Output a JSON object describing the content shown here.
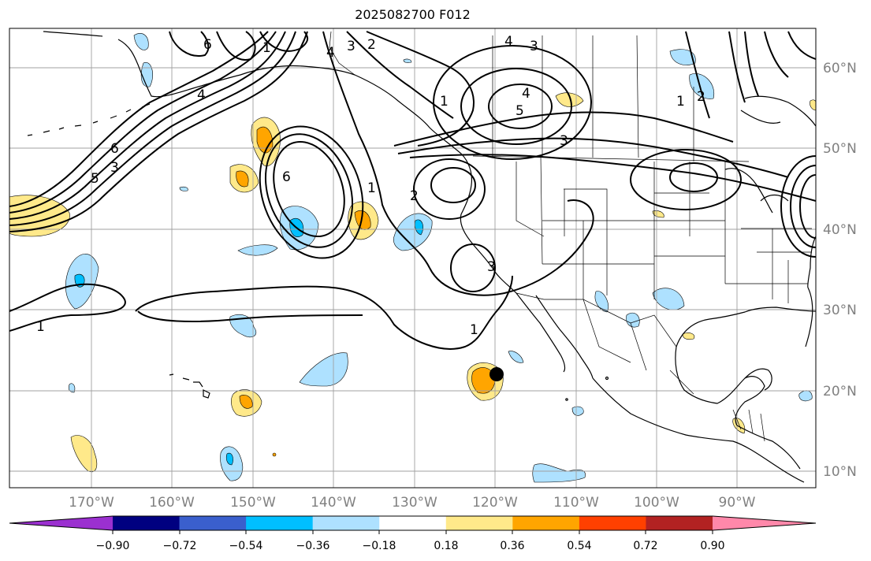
{
  "title": "2025082700 F012",
  "map": {
    "lon_labels": [
      "170°W",
      "160°W",
      "150°W",
      "140°W",
      "130°W",
      "120°W",
      "110°W",
      "100°W",
      "90°W"
    ],
    "lat_labels": [
      "60°N",
      "50°N",
      "40°N",
      "30°N",
      "20°N",
      "10°N"
    ],
    "marker": {
      "label": "",
      "lon": -119.3,
      "lat": 22.0
    },
    "contour_labels": [
      "1",
      "1",
      "1",
      "1",
      "1",
      "1",
      "2",
      "2",
      "2",
      "3",
      "3",
      "3",
      "3",
      "3",
      "4",
      "4",
      "4",
      "4",
      "5",
      "5",
      "6",
      "6",
      "6"
    ]
  },
  "colorbar": {
    "ticks": [
      "−0.90",
      "−0.72",
      "−0.54",
      "−0.36",
      "−0.18",
      "0.18",
      "0.36",
      "0.54",
      "0.72",
      "0.90"
    ],
    "colors": [
      "#9b30d0",
      "#000080",
      "#3a5fcd",
      "#00bfff",
      "#aee1ff",
      "#ffffff",
      "#ffe98a",
      "#ffa500",
      "#ff4000",
      "#b22222",
      "#ff88aa"
    ]
  },
  "colors": {
    "light_blue": "#aee1ff",
    "deep_sky": "#00bfff",
    "yellow": "#ffe98a",
    "orange": "#ffa500",
    "grid": "#a0a0a0"
  }
}
